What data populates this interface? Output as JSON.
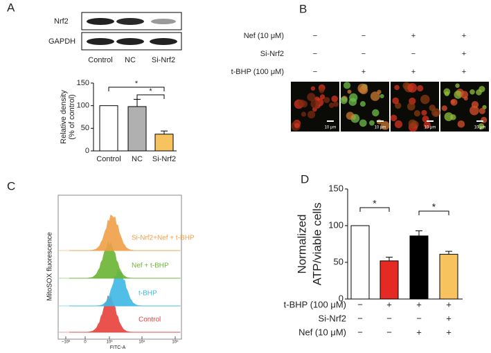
{
  "panels": [
    "A",
    "B",
    "C",
    "D"
  ],
  "blot": {
    "rows": [
      "Nrf2",
      "GAPDH"
    ],
    "lanes": [
      "Control",
      "NC",
      "Si-Nrf2"
    ]
  },
  "conditions_b": {
    "rows": [
      {
        "label": "Nef (10 μM)",
        "signs": [
          "−",
          "−",
          "+",
          "+"
        ]
      },
      {
        "label": "Si-Nrf2",
        "signs": [
          "−",
          "−",
          "−",
          "+"
        ]
      },
      {
        "label": "t-BHP (100 μM)",
        "signs": [
          "−",
          "+",
          "+",
          "+"
        ]
      }
    ],
    "scale_bars": [
      "10 μm",
      "10 μm",
      "10 μm",
      "10 μm"
    ]
  },
  "flow": {
    "ylabel": "MitoSOX fluorescence",
    "xlabel": "FITC-A",
    "xticks": [
      "−10³",
      "0",
      "10³",
      "10⁴",
      "10⁵"
    ],
    "series": [
      {
        "name": "Control",
        "color": "#e8413a"
      },
      {
        "name": "t-BHP",
        "color": "#3fb8e6"
      },
      {
        "name": "Nef + t-BHP",
        "color": "#6ab534"
      },
      {
        "name": "Si-Nrf2+Nef + t-BHP",
        "color": "#f0a048"
      }
    ]
  },
  "chart_data": [
    {
      "type": "bar",
      "categories": [
        "Control",
        "NC",
        "Si-Nrf2"
      ],
      "values": [
        100,
        98,
        37
      ],
      "errors": [
        null,
        16,
        7
      ],
      "colors": [
        "#ffffff",
        "#b0b0b0",
        "#f6c35e"
      ],
      "ylabel": [
        "Relative density",
        "(% of control)"
      ],
      "ylim": [
        0,
        150
      ],
      "yticks": [
        0,
        50,
        100,
        150
      ],
      "annotations": [
        "*",
        "*"
      ]
    },
    {
      "type": "bar",
      "values": [
        100,
        52,
        86,
        61
      ],
      "errors": [
        null,
        5,
        7,
        4
      ],
      "colors": [
        "#ffffff",
        "#e42a22",
        "#000000",
        "#f6c35e"
      ],
      "ylabel": [
        "Normalized",
        "ATP/viable cells"
      ],
      "ylim": [
        0,
        150
      ],
      "yticks": [
        0,
        50,
        100,
        150
      ],
      "annotations": [
        "*",
        "*"
      ],
      "conditions": [
        {
          "label": "t-BHP (100 μM)",
          "signs": [
            "−",
            "+",
            "+",
            "+"
          ]
        },
        {
          "label": "Si-Nrf2",
          "signs": [
            "−",
            "−",
            "−",
            "+"
          ]
        },
        {
          "label": "Nef (10 μM)",
          "signs": [
            "−",
            "−",
            "+",
            "+"
          ]
        }
      ]
    }
  ]
}
